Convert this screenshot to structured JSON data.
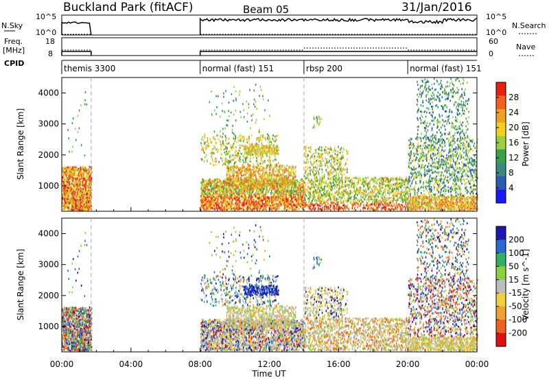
{
  "header": {
    "station": "Buckland Park (fitACF)",
    "beam": "Beam 05",
    "date": "31/Jan/2016"
  },
  "noise_panel": {
    "left_label": "N.Sky",
    "left_top": "10^5",
    "left_bottom": "10^0",
    "right_top": "10^5",
    "right_bottom": "10^0",
    "right_label": "N.Search"
  },
  "freq_panel": {
    "left_label_1": "Freq.",
    "left_label_2": "[MHz]",
    "left_top": "18",
    "left_bottom": "8",
    "right_top": "60",
    "right_bottom": "0",
    "right_label": "Nave"
  },
  "cpid": {
    "label": "CPID",
    "segments": [
      {
        "name": "themis 3300",
        "start_h": 0,
        "end_h": 1.7
      },
      {
        "name": "normal (fast) 151",
        "start_h": 8,
        "end_h": 14
      },
      {
        "name": "rbsp 200",
        "start_h": 14,
        "end_h": 20
      },
      {
        "name": "normal (fast) 151",
        "start_h": 20,
        "end_h": 24
      }
    ]
  },
  "power_panel": {
    "ylabel": "Slant Range [km]",
    "colorbar_label": "Power [dB]",
    "colorbar_ticks": [
      "4",
      "8",
      "12",
      "16",
      "20",
      "24",
      "28"
    ],
    "colors": [
      "#1a1aff",
      "#2c5cb0",
      "#3a8a80",
      "#3aa04a",
      "#9ad040",
      "#f0d020",
      "#f0a020",
      "#f06020",
      "#e82010"
    ]
  },
  "velocity_panel": {
    "ylabel": "Slant Range [km]",
    "colorbar_label": "Velocity [m s^-1]",
    "colorbar_ticks": [
      "200",
      "100",
      "50",
      "15",
      "-15",
      "-50",
      "-100",
      "-200"
    ],
    "colors": [
      "#1a1ab0",
      "#2a6ad0",
      "#30b060",
      "#8ad040",
      "#bdbdbd",
      "#f0d040",
      "#f0a030",
      "#f06020",
      "#e01010"
    ]
  },
  "x_axis": {
    "ticks": [
      "00:00",
      "04:00",
      "08:00",
      "12:00",
      "16:00",
      "20:00",
      "00:00"
    ],
    "label": "Time UT"
  },
  "y_axis": {
    "ticks": [
      "1000",
      "2000",
      "3000",
      "4000"
    ]
  },
  "chart_data": [
    {
      "type": "heatmap",
      "title": "Buckland Park (fitACF) Beam 05 31/Jan/2016",
      "xlabel": "Time UT",
      "ylabel": "Slant Range [km]",
      "xlim": [
        0,
        24
      ],
      "ylim": [
        180,
        4500
      ],
      "colorbar": "Power [dB]",
      "clim": [
        0,
        30
      ],
      "regions": [
        {
          "t0": 0,
          "t1": 1.7,
          "r0": 250,
          "r1": 1600,
          "value": 22
        },
        {
          "t0": 8,
          "t1": 14,
          "r0": 250,
          "r1": 1800,
          "value": 18
        },
        {
          "t0": 8,
          "t1": 13.5,
          "r0": 1900,
          "r1": 2700,
          "value": 14
        },
        {
          "t0": 14,
          "t1": 20,
          "r0": 250,
          "r1": 1300,
          "value": 15
        },
        {
          "t0": 20,
          "t1": 24,
          "r0": 600,
          "r1": 4500,
          "value": 10
        }
      ]
    },
    {
      "type": "heatmap",
      "title": "Buckland Park (fitACF) Beam 05 31/Jan/2016",
      "xlabel": "Time UT",
      "ylabel": "Slant Range [km]",
      "xlim": [
        0,
        24
      ],
      "ylim": [
        180,
        4500
      ],
      "colorbar": "Velocity [m s^-1]",
      "clim": [
        -200,
        200
      ],
      "regions": [
        {
          "t0": 0,
          "t1": 1.7,
          "r0": 250,
          "r1": 1600,
          "value": 20
        },
        {
          "t0": 8,
          "t1": 14,
          "r0": 250,
          "r1": 1800,
          "value": -10
        },
        {
          "t0": 10.5,
          "t1": 12.5,
          "r0": 2000,
          "r1": 2400,
          "value": 150
        },
        {
          "t0": 14,
          "t1": 20,
          "r0": 250,
          "r1": 1300,
          "value": -30
        },
        {
          "t0": 20,
          "t1": 24,
          "r0": 600,
          "r1": 4500,
          "value": 60
        }
      ]
    }
  ]
}
